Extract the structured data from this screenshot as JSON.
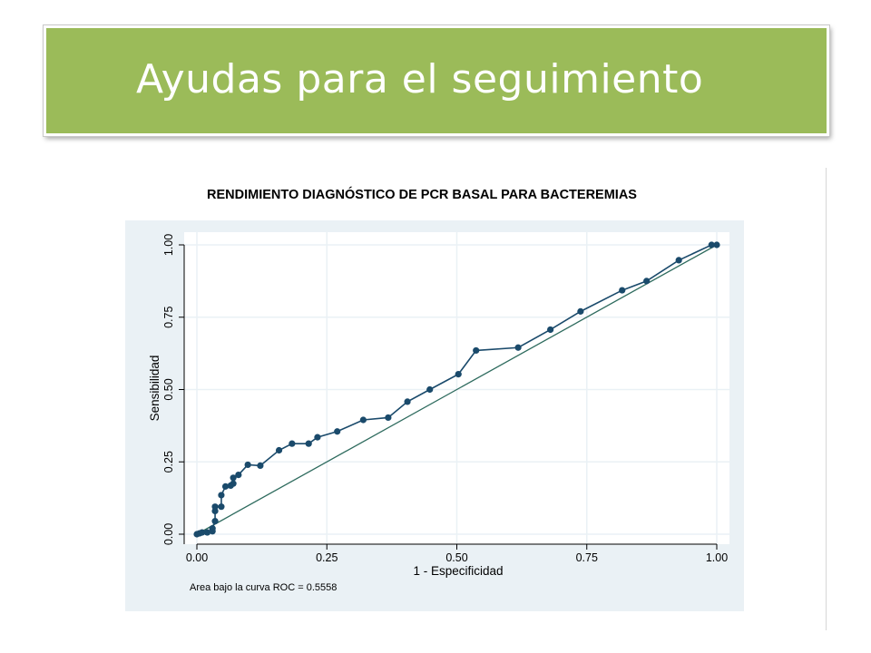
{
  "slide": {
    "title": "Ayudas para el seguimiento",
    "accent_color": "#9bbb59"
  },
  "chart_data": {
    "type": "line",
    "title": "RENDIMIENTO DIAGNÓSTICO DE PCR BASAL PARA BACTEREMIAS",
    "xlabel": "1 - Especificidad",
    "ylabel": "Sensibilidad",
    "xlim": [
      0,
      1
    ],
    "ylim": [
      0,
      1
    ],
    "xticks": [
      "0.00",
      "0.25",
      "0.50",
      "0.75",
      "1.00"
    ],
    "yticks": [
      "0.00",
      "0.25",
      "0.50",
      "0.75",
      "1.00"
    ],
    "grid": true,
    "annotation": "Area bajo la curva ROC = 0.5558",
    "colors": {
      "curve": "#1a4a6b",
      "reference": "#2e6b5e",
      "plot_bg": "#eaf1f5"
    },
    "series": [
      {
        "points": [
          [
            0.0,
            0.0
          ],
          [
            0.005,
            0.003
          ],
          [
            0.01,
            0.006
          ],
          [
            0.02,
            0.006
          ],
          [
            0.03,
            0.01
          ],
          [
            0.03,
            0.02
          ],
          [
            0.035,
            0.045
          ],
          [
            0.035,
            0.08
          ],
          [
            0.035,
            0.095
          ],
          [
            0.047,
            0.095
          ],
          [
            0.047,
            0.135
          ],
          [
            0.055,
            0.165
          ],
          [
            0.065,
            0.168
          ],
          [
            0.07,
            0.175
          ],
          [
            0.07,
            0.195
          ],
          [
            0.08,
            0.205
          ],
          [
            0.098,
            0.24
          ],
          [
            0.122,
            0.237
          ],
          [
            0.158,
            0.29
          ],
          [
            0.183,
            0.313
          ],
          [
            0.215,
            0.313
          ],
          [
            0.232,
            0.335
          ],
          [
            0.27,
            0.355
          ],
          [
            0.32,
            0.395
          ],
          [
            0.368,
            0.403
          ],
          [
            0.405,
            0.458
          ],
          [
            0.448,
            0.5
          ],
          [
            0.503,
            0.553
          ],
          [
            0.537,
            0.635
          ],
          [
            0.618,
            0.645
          ],
          [
            0.68,
            0.707
          ],
          [
            0.738,
            0.77
          ],
          [
            0.818,
            0.843
          ],
          [
            0.865,
            0.875
          ],
          [
            0.927,
            0.947
          ],
          [
            0.99,
            1.0
          ],
          [
            1.0,
            1.0
          ]
        ]
      }
    ],
    "reference_line": [
      [
        0,
        0
      ],
      [
        1,
        1
      ]
    ]
  }
}
